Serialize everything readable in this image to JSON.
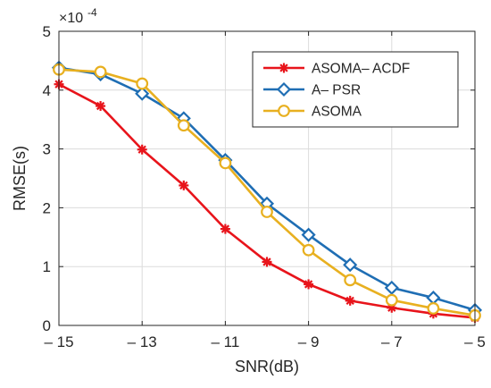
{
  "chart_data": {
    "type": "line",
    "xlabel": "SNR(dB)",
    "ylabel": "RMSE(s)",
    "y_exponent_label": "×10",
    "y_exponent_power": "-4",
    "xlim": [
      -15,
      -5
    ],
    "ylim": [
      0,
      5
    ],
    "x_ticks": [
      -15,
      -13,
      -11,
      -9,
      -7,
      -5
    ],
    "x_tick_labels": [
      "– 15",
      "– 13",
      "– 11",
      "– 9",
      "– 7",
      "– 5"
    ],
    "y_ticks": [
      0,
      1,
      2,
      3,
      4,
      5
    ],
    "y_tick_labels": [
      "0",
      "1",
      "2",
      "3",
      "4",
      "5"
    ],
    "grid": true,
    "legend_position": "top-right",
    "x": [
      -15,
      -14,
      -13,
      -12,
      -11,
      -10,
      -9,
      -8,
      -7,
      -6,
      -5
    ],
    "series": [
      {
        "name": "ASOMA– ACDF",
        "color": "#e8141b",
        "marker": "asterisk",
        "values": [
          4.1,
          3.73,
          2.99,
          2.38,
          1.64,
          1.08,
          0.7,
          0.42,
          0.3,
          0.2,
          0.13
        ]
      },
      {
        "name": "A– PSR",
        "color": "#1f6eb4",
        "marker": "diamond",
        "values": [
          4.38,
          4.27,
          3.94,
          3.52,
          2.81,
          2.07,
          1.54,
          1.03,
          0.64,
          0.47,
          0.26
        ]
      },
      {
        "name": "ASOMA",
        "color": "#e8b020",
        "marker": "circle",
        "values": [
          4.35,
          4.31,
          4.11,
          3.4,
          2.76,
          1.93,
          1.28,
          0.77,
          0.43,
          0.29,
          0.17
        ]
      }
    ]
  }
}
